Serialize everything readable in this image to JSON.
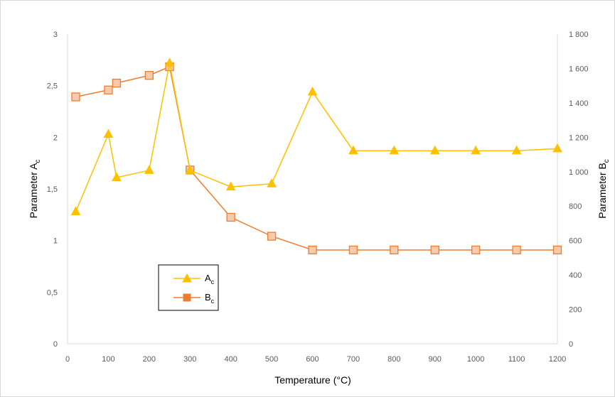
{
  "chart_data": {
    "type": "line",
    "x": [
      20,
      100,
      120,
      200,
      250,
      300,
      400,
      500,
      600,
      700,
      800,
      900,
      1000,
      1100,
      1200
    ],
    "xlabel": "Temperature (°C)",
    "xlim": [
      0,
      1200
    ],
    "xticks": [
      "0",
      "100",
      "200",
      "300",
      "400",
      "500",
      "600",
      "700",
      "800",
      "900",
      "1000",
      "1100",
      "1200"
    ],
    "ylabel": {
      "main": "Parameter A",
      "sub": "c"
    },
    "ylim": [
      0,
      3
    ],
    "yticks": [
      "0",
      "0,5",
      "1",
      "1,5",
      "2",
      "2,5",
      "3"
    ],
    "y2label": {
      "main": "Parameter B",
      "sub": "c"
    },
    "y2lim": [
      0,
      1800
    ],
    "y2ticks": [
      "0",
      "200",
      "400",
      "600",
      "800",
      "1 000",
      "1 200",
      "1 400",
      "1 600",
      "1 800"
    ],
    "grid": false,
    "legend_position": "lower-left",
    "series": [
      {
        "name": "A",
        "name_sub": "c",
        "axis": "left",
        "marker": "triangle",
        "color": "#FFC000",
        "values": [
          1.28,
          2.03,
          1.61,
          1.68,
          2.72,
          1.68,
          1.52,
          1.55,
          2.44,
          1.87,
          1.87,
          1.87,
          1.87,
          1.87,
          1.89
        ]
      },
      {
        "name": "B",
        "name_sub": "c",
        "axis": "right",
        "marker": "square",
        "color": "#ED7D31",
        "fill": "#F8CBAD",
        "values": [
          1435,
          1475,
          1515,
          1560,
          1610,
          1010,
          735,
          625,
          545,
          545,
          545,
          545,
          545,
          545,
          545
        ]
      }
    ]
  }
}
